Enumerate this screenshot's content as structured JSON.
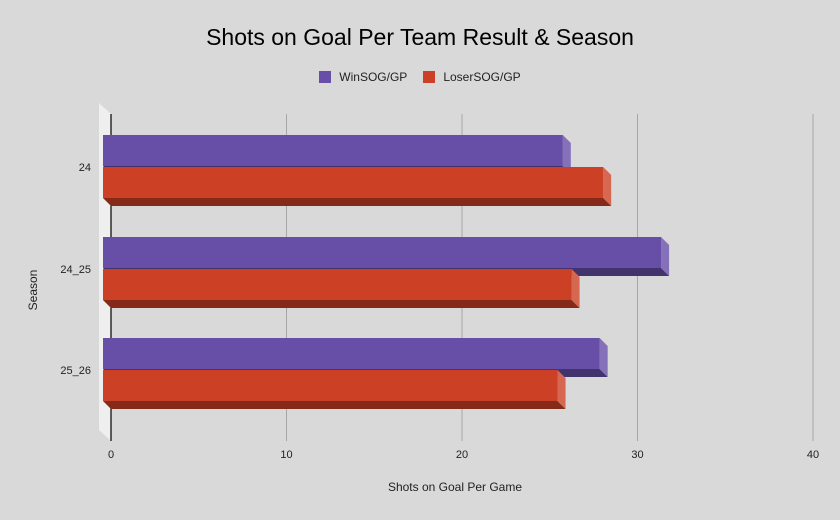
{
  "chart_data": {
    "type": "bar",
    "orientation": "horizontal",
    "style": "3d",
    "title": "Shots on Goal Per Team Result & Season",
    "xlabel": "Shots on Goal Per Game",
    "ylabel": "Season",
    "xlim": [
      0,
      40
    ],
    "x_ticks": [
      "0",
      "10",
      "20",
      "30",
      "40"
    ],
    "categories": [
      "24",
      "24_25",
      "25_26"
    ],
    "series": [
      {
        "name": "WinSOG/GP",
        "color": "#674ea7",
        "values": [
          26.2,
          31.8,
          28.3
        ]
      },
      {
        "name": "LoserSOG/GP",
        "color": "#cc4125",
        "values": [
          28.5,
          26.7,
          25.9
        ]
      }
    ],
    "grid": true,
    "legend_position": "top"
  },
  "colors": {
    "background": "#d9d9d9",
    "gridline": "#a6a6a6",
    "wall": "#efefef"
  }
}
